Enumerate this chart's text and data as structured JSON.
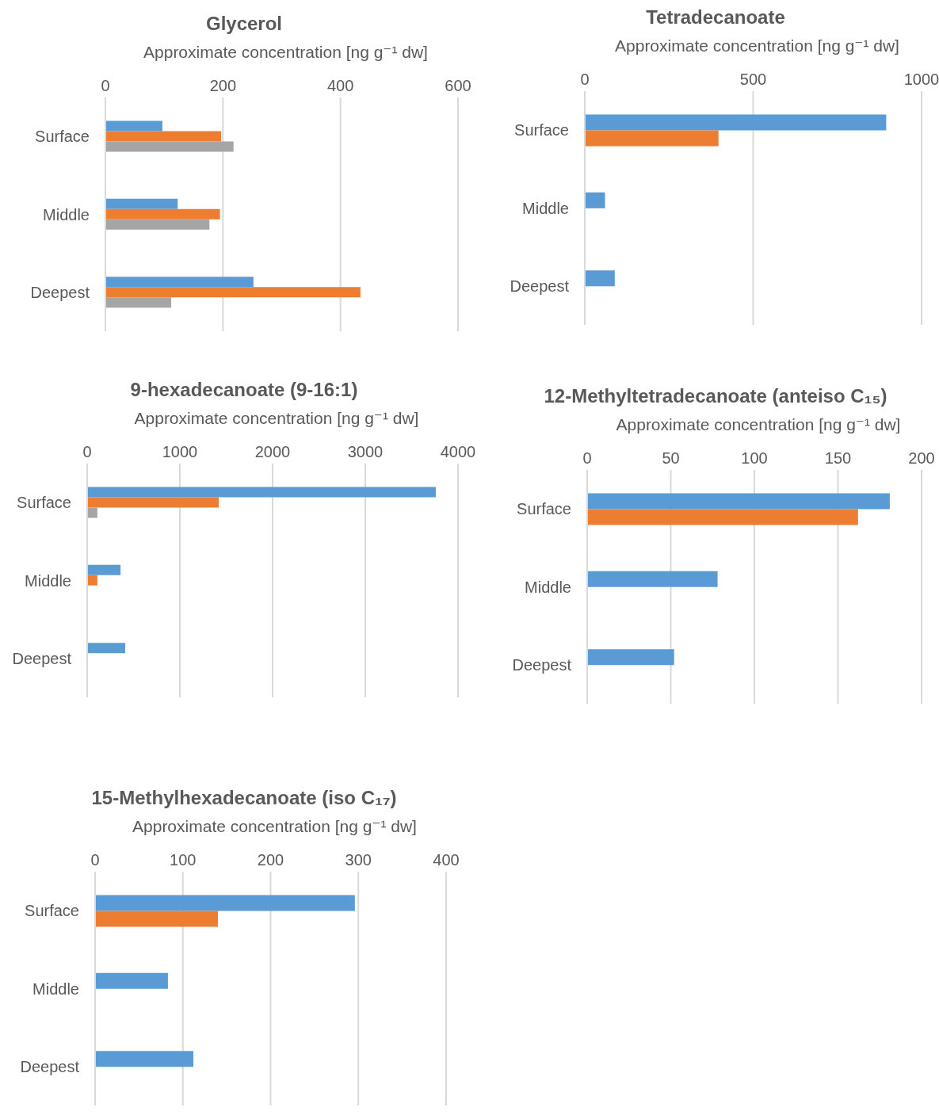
{
  "chart_data": [
    {
      "type": "bar",
      "orientation": "horizontal",
      "title": "Glycerol",
      "xlabel": "Approximate concentration [ng g⁻¹ dw]",
      "categories": [
        "Surface",
        "Middle",
        "Deepest"
      ],
      "series": [
        {
          "color": "#5b9bd5",
          "values": [
            97,
            123,
            252
          ]
        },
        {
          "color": "#ed7d31",
          "values": [
            197,
            195,
            434
          ]
        },
        {
          "color": "#a5a5a5",
          "values": [
            218,
            177,
            112
          ]
        }
      ],
      "xlim": [
        0,
        600
      ],
      "xticks": [
        0,
        200,
        400,
        600
      ],
      "grid": "x"
    },
    {
      "type": "bar",
      "orientation": "horizontal",
      "title": "Tetradecanoate",
      "xlabel": "Approximate concentration [ng g⁻¹ dw]",
      "categories": [
        "Surface",
        "Middle",
        "Deepest"
      ],
      "series": [
        {
          "color": "#5b9bd5",
          "values": [
            895,
            60,
            89
          ]
        },
        {
          "color": "#ed7d31",
          "values": [
            397,
            null,
            null
          ]
        }
      ],
      "xlim": [
        0,
        1000
      ],
      "xticks": [
        0,
        500,
        1000
      ],
      "grid": "x"
    },
    {
      "type": "bar",
      "orientation": "horizontal",
      "title": "9-hexadecanoate (9-16:1)",
      "xlabel": "Approximate concentration [ng g⁻¹ dw]",
      "categories": [
        "Surface",
        "Middle",
        "Deepest"
      ],
      "series": [
        {
          "color": "#5b9bd5",
          "values": [
            3760,
            360,
            410
          ]
        },
        {
          "color": "#ed7d31",
          "values": [
            1420,
            110,
            null
          ]
        },
        {
          "color": "#a5a5a5",
          "values": [
            110,
            null,
            null
          ]
        }
      ],
      "xlim": [
        0,
        4000
      ],
      "xticks": [
        0,
        1000,
        2000,
        3000,
        4000
      ],
      "grid": "x"
    },
    {
      "type": "bar",
      "orientation": "horizontal",
      "title": "12-Methyltetradecanoate (anteiso C₁₅)",
      "xlabel": "Approximate concentration [ng g⁻¹ dw]",
      "categories": [
        "Surface",
        "Middle",
        "Deepest"
      ],
      "series": [
        {
          "color": "#5b9bd5",
          "values": [
            181,
            78,
            52
          ]
        },
        {
          "color": "#ed7d31",
          "values": [
            162,
            null,
            null
          ]
        }
      ],
      "xlim": [
        0,
        200
      ],
      "xticks": [
        0,
        50,
        100,
        150,
        200
      ],
      "grid": "x"
    },
    {
      "type": "bar",
      "orientation": "horizontal",
      "title": "15-Methylhexadecanoate (iso C₁₇)",
      "xlabel": "Approximate concentration [ng g⁻¹ dw]",
      "categories": [
        "Surface",
        "Middle",
        "Deepest"
      ],
      "series": [
        {
          "color": "#5b9bd5",
          "values": [
            296,
            83,
            112
          ]
        },
        {
          "color": "#ed7d31",
          "values": [
            140,
            null,
            null
          ]
        }
      ],
      "xlim": [
        0,
        400
      ],
      "xticks": [
        0,
        100,
        200,
        300,
        400
      ],
      "grid": "x"
    }
  ]
}
